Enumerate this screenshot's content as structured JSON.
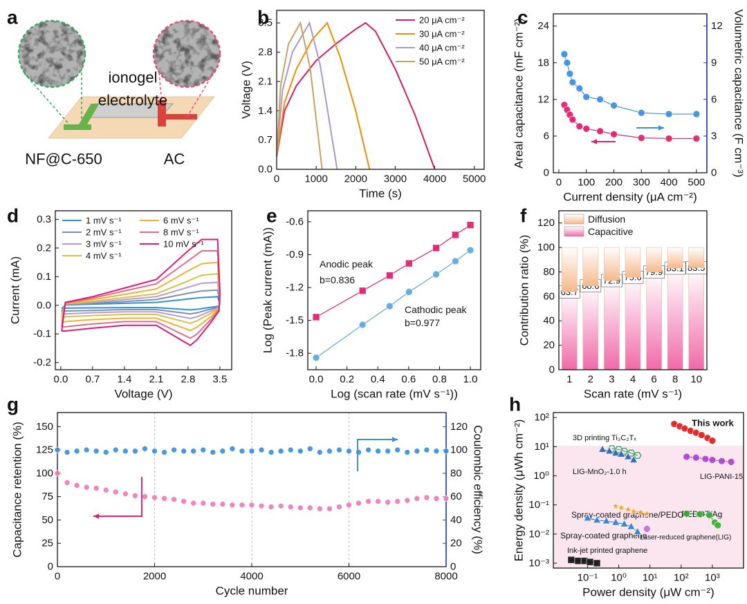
{
  "diagram": {
    "panel": "a",
    "electrolyte": [
      "ionogel",
      "electrolyte"
    ],
    "left_electrode": "NF@C-650",
    "right_electrode": "AC"
  },
  "chart_data": [
    {
      "panel": "b",
      "type": "line",
      "connect": true,
      "xlabel": "Time (s)",
      "ylabel": "Voltage (V)",
      "xlim": [
        0,
        5250
      ],
      "ylim": [
        0,
        3.8
      ],
      "xticks": [
        0,
        1000,
        2000,
        3000,
        4000,
        5000
      ],
      "yticks": [
        {
          "value": 0,
          "label": "0.0"
        },
        0.7,
        1.4,
        2.1,
        2.8,
        3.5
      ],
      "legend": "upper right",
      "series": [
        {
          "name": "20 μA cm⁻²",
          "color": "#d81b60",
          "x": [
            0,
            200,
            500,
            1000,
            1500,
            2000,
            2250,
            2500,
            3000,
            3500,
            4000
          ],
          "values": [
            0.3,
            1.4,
            2.0,
            2.6,
            3.0,
            3.35,
            3.5,
            3.3,
            2.4,
            1.3,
            0
          ]
        },
        {
          "name": "30 μA cm⁻²",
          "color": "#f08c00",
          "x": [
            0,
            200,
            500,
            900,
            1280,
            1600,
            2000,
            2350
          ],
          "values": [
            0.3,
            1.6,
            2.4,
            3.1,
            3.5,
            2.7,
            1.4,
            0
          ]
        },
        {
          "name": "40 μA cm⁻²",
          "color": "#a89ac8",
          "x": [
            0,
            150,
            400,
            830,
            1100,
            1530
          ],
          "values": [
            0.3,
            1.9,
            2.8,
            3.5,
            2.5,
            0
          ]
        },
        {
          "name": "50 μA cm⁻²",
          "color": "#c8a060",
          "x": [
            0,
            100,
            300,
            600,
            850,
            1150
          ],
          "values": [
            0.3,
            2.0,
            3.0,
            3.5,
            2.4,
            0
          ]
        }
      ]
    },
    {
      "panel": "c",
      "type": "line",
      "connect": true,
      "xlabel": "Current density (μA cm⁻²)",
      "ylabel": "Areal capacitance (mF cm⁻²)",
      "y2label": "Volumetric capacitance (F cm⁻³)",
      "y2color": "#2b2bd0",
      "xlim": [
        -20,
        538
      ],
      "ylim": [
        0,
        26
      ],
      "y2lim": [
        0,
        13
      ],
      "xticks": [
        0,
        100,
        200,
        300,
        400,
        500
      ],
      "yticks": [
        0,
        6,
        12,
        18,
        24
      ],
      "y2ticks": [
        0,
        3,
        6,
        9,
        12
      ],
      "x": [
        20,
        30,
        40,
        50,
        75,
        100,
        150,
        200,
        300,
        400,
        500
      ],
      "series": [
        {
          "color": "#e0206e",
          "marker": "circle",
          "values": [
            11.1,
            10.3,
            9.5,
            8.7,
            7.6,
            7.2,
            6.8,
            6.3,
            5.7,
            5.6,
            5.6
          ]
        },
        {
          "color": "#3a8fe0",
          "marker": "circle",
          "axis": "y2",
          "values": [
            9.7,
            9.0,
            8.1,
            7.4,
            6.9,
            6.2,
            6.0,
            5.5,
            4.9,
            4.8,
            4.8
          ]
        }
      ]
    },
    {
      "panel": "d",
      "type": "line",
      "connect": true,
      "xlabel": "Voltage (V)",
      "ylabel": "Current (mA)",
      "xlim": [
        -0.12,
        3.76
      ],
      "ylim": [
        -0.225,
        0.33
      ],
      "xticks": [
        {
          "value": 0,
          "label": "0.0"
        },
        0.7,
        1.4,
        2.1,
        2.8,
        3.5
      ],
      "yticks": [
        -0.2,
        -0.1,
        {
          "value": 0,
          "label": "0.0"
        },
        0.1,
        0.2,
        0.3
      ],
      "legend": "upper left",
      "x": [
        0.02,
        0.1,
        0.7,
        1.4,
        2.1,
        2.8,
        3.1,
        3.45,
        3.5,
        3.48,
        3.3,
        3.0,
        2.85,
        2.1,
        1.4,
        0.7,
        0.1,
        0.02
      ],
      "series": [
        {
          "name": "1 mV s⁻¹",
          "color": "#2f8fd8",
          "values": [
            -0.012,
            0.001,
            0.004,
            0.007,
            0.01,
            0.022,
            0.027,
            0.03,
            0.005,
            -0.003,
            -0.007,
            -0.014,
            -0.016,
            -0.008,
            -0.008,
            -0.009,
            -0.01,
            -0.012
          ]
        },
        {
          "name": "2 mV s⁻¹",
          "color": "#7a90a8",
          "values": [
            -0.022,
            0.002,
            0.007,
            0.013,
            0.02,
            0.042,
            0.05,
            0.053,
            0.01,
            -0.005,
            -0.013,
            -0.026,
            -0.03,
            -0.015,
            -0.015,
            -0.018,
            -0.02,
            -0.022
          ]
        },
        {
          "name": "3 mV s⁻¹",
          "color": "#b59ad8",
          "values": [
            -0.033,
            0.004,
            0.01,
            0.02,
            0.03,
            0.063,
            0.077,
            0.08,
            0.015,
            -0.007,
            -0.02,
            -0.04,
            -0.046,
            -0.023,
            -0.023,
            -0.026,
            -0.03,
            -0.033
          ]
        },
        {
          "name": "4 mV s⁻¹",
          "color": "#d8c040",
          "values": [
            -0.045,
            0.005,
            0.014,
            0.027,
            0.04,
            0.085,
            0.105,
            0.11,
            0.02,
            -0.01,
            -0.028,
            -0.054,
            -0.063,
            -0.032,
            -0.032,
            -0.036,
            -0.04,
            -0.045
          ]
        },
        {
          "name": "6 mV s⁻¹",
          "color": "#f0b030",
          "values": [
            -0.06,
            0.006,
            0.02,
            0.038,
            0.057,
            0.12,
            0.145,
            0.15,
            0.03,
            -0.012,
            -0.04,
            -0.076,
            -0.088,
            -0.045,
            -0.045,
            -0.05,
            -0.057,
            -0.06
          ]
        },
        {
          "name": "8 mV s⁻¹",
          "color": "#e86a8a",
          "values": [
            -0.075,
            0.008,
            0.025,
            0.05,
            0.075,
            0.155,
            0.19,
            0.19,
            0.04,
            -0.015,
            -0.05,
            -0.1,
            -0.115,
            -0.057,
            -0.057,
            -0.065,
            -0.075,
            -0.075
          ]
        },
        {
          "name": "10 mV s⁻¹",
          "color": "#d81b7a",
          "values": [
            -0.09,
            0.01,
            0.03,
            0.06,
            0.09,
            0.19,
            0.23,
            0.23,
            0.05,
            -0.02,
            -0.06,
            -0.12,
            -0.14,
            -0.07,
            -0.07,
            -0.08,
            -0.09,
            -0.09
          ]
        }
      ]
    },
    {
      "panel": "e",
      "type": "line",
      "connect": true,
      "xlabel": "Log (scan rate (mV s⁻¹))",
      "ylabel": "Log (Peak current (mA))",
      "xlim": [
        -0.054,
        1.067
      ],
      "ylim": [
        -1.95,
        -0.5
      ],
      "xticks": [
        {
          "value": 0,
          "label": "0.0"
        },
        0.2,
        0.4,
        0.6,
        0.8,
        {
          "value": 1,
          "label": "1.0"
        }
      ],
      "yticks": [
        -1.8,
        -1.5,
        -1.2,
        -0.9,
        -0.6
      ],
      "annotations": [
        "Anodic peak",
        "b=0.836",
        "Cathodic peak",
        "b=0.977"
      ],
      "x": [
        0,
        0.301,
        0.477,
        0.602,
        0.778,
        0.903,
        1.0
      ],
      "series": [
        {
          "color": "#e0206e",
          "marker": "square",
          "values": [
            -1.47,
            -1.23,
            -1.09,
            -0.98,
            -0.84,
            -0.72,
            -0.63
          ]
        },
        {
          "color": "#5ba8e0",
          "marker": "circle",
          "values": [
            -1.84,
            -1.54,
            -1.37,
            -1.24,
            -1.08,
            -0.96,
            -0.86
          ]
        }
      ]
    },
    {
      "panel": "f",
      "type": "bar",
      "stacked": true,
      "xlabel": "Scan rate (mV s⁻¹)",
      "ylabel": "Contribution ratio (%)",
      "ylim": [
        0,
        130
      ],
      "yticks": [
        0,
        20,
        40,
        60,
        80,
        100,
        120
      ],
      "legend": "upper left",
      "categories": [
        "1",
        "2",
        "3",
        "4",
        "6",
        "8",
        "10"
      ],
      "series": [
        {
          "name": "Diffusion",
          "color": "#f5b98a",
          "values": [
            36.3,
            31.4,
            27.1,
            24.4,
            20.1,
            16.9,
            16.5
          ]
        },
        {
          "name": "Capacitive",
          "color": "#f06aa8",
          "show_values": true,
          "values": [
            63.7,
            68.6,
            72.9,
            75.6,
            79.9,
            83.1,
            83.5
          ]
        }
      ]
    },
    {
      "panel": "g",
      "type": "scatter",
      "xgrid": true,
      "xlabel": "Cycle number",
      "ylabel": "Capacitance retention (%)",
      "y2label": "Coulombic efficiency (%)",
      "y2color": "#1e3fd0",
      "xlim": [
        0,
        8000
      ],
      "ylim": [
        0,
        165
      ],
      "y2lim": [
        0,
        132
      ],
      "xticks": [
        0,
        2000,
        4000,
        6000,
        8000
      ],
      "yticks": [
        0,
        25,
        50,
        75,
        100,
        125,
        150
      ],
      "y2ticks": [
        0,
        20,
        40,
        60,
        80,
        100,
        120
      ],
      "x": [
        0,
        200,
        400,
        600,
        800,
        1000,
        1200,
        1400,
        1600,
        1800,
        2000,
        2200,
        2400,
        2600,
        2800,
        3000,
        3200,
        3400,
        3600,
        3800,
        4000,
        4200,
        4400,
        4600,
        4800,
        5000,
        5200,
        5400,
        5600,
        5800,
        6000,
        6200,
        6400,
        6600,
        6800,
        7000,
        7200,
        7400,
        7600,
        7800,
        8000
      ],
      "series": [
        {
          "color": "#f07ab8",
          "marker": "circle",
          "values": [
            100,
            90,
            87,
            85,
            84,
            82,
            80,
            78,
            76,
            75,
            74,
            73,
            72,
            70,
            68,
            68,
            67,
            67,
            66,
            66,
            66,
            65,
            64,
            65,
            64,
            63,
            63,
            62,
            62,
            64,
            66,
            68,
            70,
            70,
            69,
            70,
            71,
            73,
            74,
            73,
            73
          ]
        },
        {
          "color": "#3a8fe0",
          "marker": "circle",
          "axis": "y2",
          "values": [
            100,
            98,
            99,
            100,
            99,
            98,
            100,
            99,
            99,
            101,
            99,
            98,
            100,
            99,
            99,
            100,
            98,
            99,
            101,
            99,
            99,
            100,
            98,
            99,
            100,
            99,
            101,
            98,
            99,
            100,
            99,
            98,
            100,
            99,
            99,
            100,
            98,
            99,
            100,
            99,
            99
          ]
        }
      ]
    },
    {
      "panel": "h",
      "type": "scatter",
      "connect": true,
      "xscale": "log",
      "yscale": "log",
      "xlabel": "Power density (μW cm⁻²)",
      "ylabel": "Energy density (μWh cm⁻²)",
      "xlim": [
        0.008,
        10000
      ],
      "ylim": [
        0.00068,
        148
      ],
      "xticks": [
        {
          "value": 0.1,
          "label": "10⁻¹"
        },
        {
          "value": 1,
          "label": "10⁰"
        },
        {
          "value": 10,
          "label": "10¹"
        },
        {
          "value": 100,
          "label": "10²"
        },
        {
          "value": 1000,
          "label": "10³"
        }
      ],
      "yticks": [
        {
          "value": 0.001,
          "label": "10⁻³"
        },
        {
          "value": 0.01,
          "label": "10⁻²"
        },
        {
          "value": 0.1,
          "label": "10⁻¹"
        },
        {
          "value": 1,
          "label": "10⁰"
        },
        {
          "value": 10,
          "label": "10¹"
        },
        {
          "value": 100,
          "label": "10²"
        }
      ],
      "series": [
        {
          "name": "This work",
          "color": "#e02020",
          "marker": "circle",
          "x": [
            60,
            90,
            130,
            200,
            300,
            450,
            700,
            1000
          ],
          "values": [
            60,
            50,
            42,
            35,
            30,
            25,
            20,
            16
          ]
        },
        {
          "name": "3D printing Ti₃C₂Tₓ",
          "color": "#3aa86a",
          "marker": "hexagon",
          "x": [
            0.6,
            1,
            1.5,
            2.5,
            4
          ],
          "values": [
            8.5,
            8,
            7,
            6,
            5
          ]
        },
        {
          "name": "LIG-MnO₂-1.0 h",
          "color": "#2f5fc0",
          "marker": "triangle",
          "x": [
            0.3,
            0.5,
            0.8,
            1.2,
            2,
            3
          ],
          "values": [
            8,
            7,
            6,
            5.5,
            4.5,
            3.5
          ]
        },
        {
          "name": "LIG-PANI-15",
          "color": "#b040d0",
          "marker": "circle",
          "x": [
            150,
            300,
            600,
            1000,
            2000,
            4000
          ],
          "values": [
            4.5,
            4.2,
            3.8,
            3.5,
            3.2,
            3.0
          ]
        },
        {
          "name": "Spray-coated graphene/PEDOT",
          "color": "#f0a030",
          "marker": "star",
          "x": [
            0.8,
            1.2,
            2,
            3,
            5,
            8
          ],
          "values": [
            0.09,
            0.08,
            0.07,
            0.06,
            0.055,
            0.05
          ]
        },
        {
          "name": "PEDOT/Ag",
          "color": "#30b030",
          "marker": "circle",
          "x": [
            150,
            400,
            800,
            1200,
            1500
          ],
          "values": [
            0.05,
            0.048,
            0.045,
            0.025,
            0.02
          ]
        },
        {
          "name": "Spray-coated graphene",
          "color": "#2f80d0",
          "marker": "triangle",
          "x": [
            0.1,
            0.2,
            0.4,
            0.8,
            1.5,
            2.5,
            4
          ],
          "values": [
            0.035,
            0.03,
            0.028,
            0.025,
            0.022,
            0.018,
            0.012
          ]
        },
        {
          "name": "Laser-reduced graphene(LIG)",
          "color": "#c070e0",
          "marker": "circle",
          "x": [
            8
          ],
          "values": [
            0.015
          ]
        },
        {
          "name": "Ink-jet printed graphene",
          "color": "#111111",
          "marker": "square",
          "x": [
            0.03,
            0.05,
            0.08,
            0.12,
            0.2
          ],
          "values": [
            0.0013,
            0.0012,
            0.0012,
            0.0011,
            0.001
          ]
        }
      ]
    }
  ]
}
